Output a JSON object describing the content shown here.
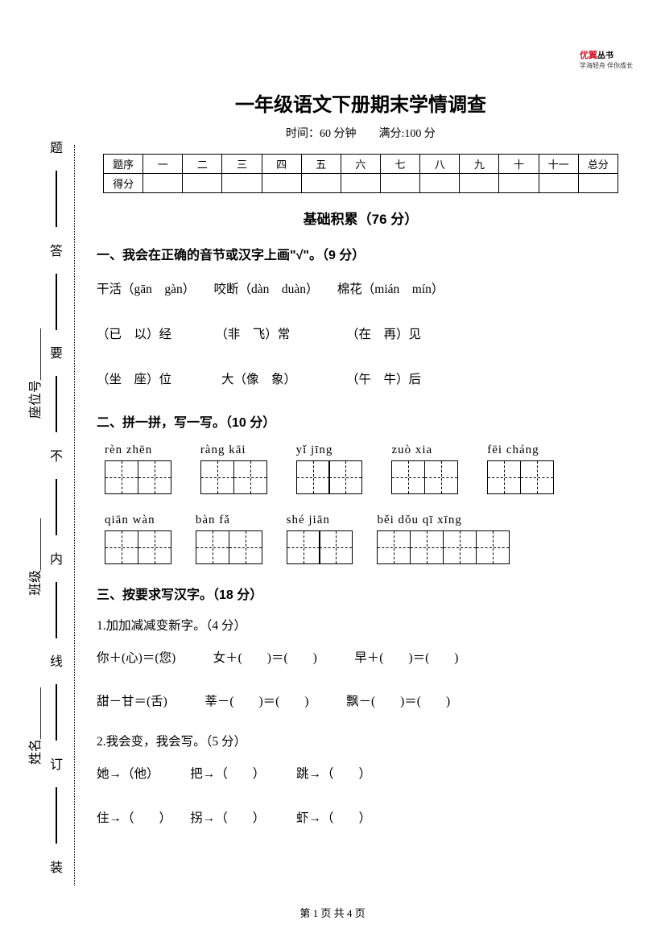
{
  "logo": {
    "main": "优翼",
    "tag": "丛书",
    "sub": "学海轻舟 伴你成长"
  },
  "title": "一年级语文下册期末学情调查",
  "subtitle": "时间：60 分钟　　满分:100 分",
  "side": {
    "chars": [
      "题",
      "答",
      "要",
      "不",
      "内",
      "线",
      "订",
      "装"
    ],
    "fields": {
      "seat": "座位号________",
      "class": "班级________",
      "name": "姓名________"
    }
  },
  "score": {
    "row1": [
      "题序",
      "一",
      "二",
      "三",
      "四",
      "五",
      "六",
      "七",
      "八",
      "九",
      "十",
      "十一",
      "总分"
    ],
    "row2": [
      "得分",
      "",
      "",
      "",
      "",
      "",
      "",
      "",
      "",
      "",
      "",
      "",
      ""
    ]
  },
  "sectionTitle": "基础积累（76 分）",
  "q1": {
    "title": "一、我会在正确的音节或汉字上画\"√\"。（9 分）",
    "l1": "干活（gān　gàn）　　咬断（dàn　duàn）　　棉花（mián　mín）",
    "l2": "（已　以）经　　　　（非　飞）常　　　　　（在　再）见",
    "l3": "（坐　座）位　　　　大（像　象）　　　　　（午　牛）后"
  },
  "q2": {
    "title": "二、拼一拼，写一写。（10 分）",
    "r1": [
      {
        "py": "rèn zhēn",
        "n": 2
      },
      {
        "py": "ràng kāi",
        "n": 2
      },
      {
        "py": "yǐ jīng",
        "n": 2
      },
      {
        "py": "zuò xia",
        "n": 2
      },
      {
        "py": "fēi cháng",
        "n": 2
      }
    ],
    "r2": [
      {
        "py": "qiān wàn",
        "n": 2
      },
      {
        "py": "bàn fǎ",
        "n": 2
      },
      {
        "py": "shé jiān",
        "n": 2
      },
      {
        "py": "běi dǒu qī xīng",
        "n": 4
      }
    ]
  },
  "q3": {
    "title": "三、按要求写汉字。（18 分）",
    "sub1": "1.加加减减变新字。（4 分）",
    "l1": "你＋(心)＝(您)　　　女＋(　　)＝(　　)　　　早＋(　　)＝(　　)",
    "l2": "甜－甘＝(舌)　　　莘－(　　)＝(　　)　　　飘－(　　)＝(　　)",
    "sub2": "2.我会变，我会写。（5 分）",
    "l3": "她→（他）　　　把→（　　）　　　跳→（　　）",
    "l4": "住→（　　）　　拐→（　　）　　　虾→（　　）"
  },
  "footer": "第 1 页 共 4 页"
}
